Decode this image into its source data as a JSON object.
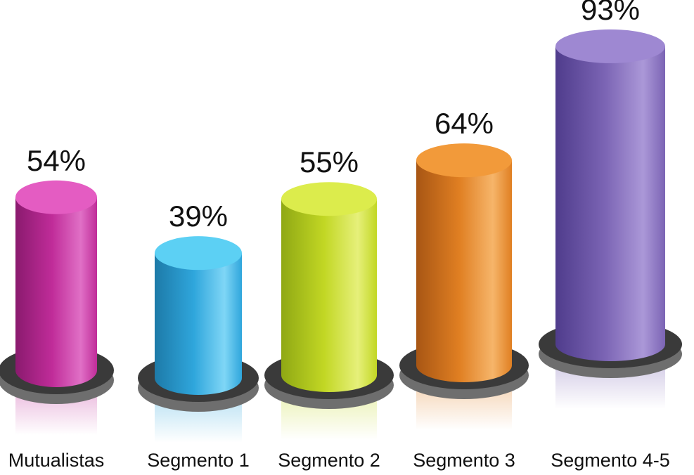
{
  "chart_data": {
    "type": "bar",
    "title": "",
    "xlabel": "",
    "ylabel": "",
    "ylim": [
      0,
      100
    ],
    "grid": false,
    "legend": "none",
    "categories": [
      "Mutualistas",
      "Segmento 1",
      "Segmento 2",
      "Segmento 3",
      "Segmento 4-5"
    ],
    "values": [
      54,
      39,
      55,
      64,
      93
    ],
    "value_labels": [
      "54%",
      "39%",
      "55%",
      "64%",
      "93%"
    ],
    "colors": [
      {
        "dark": "#8a1a6e",
        "mid": "#c02c99",
        "light": "#e070c6",
        "top": "#e45cc2"
      },
      {
        "dark": "#1d7aa8",
        "mid": "#2fa6dc",
        "light": "#7fd6f6",
        "top": "#5cd0f4"
      },
      {
        "dark": "#8fa814",
        "mid": "#c2d724",
        "light": "#e6f07a",
        "top": "#dcec4c"
      },
      {
        "dark": "#a85614",
        "mid": "#e07f22",
        "light": "#f6b56a",
        "top": "#f29a3a"
      },
      {
        "dark": "#4f3c8c",
        "mid": "#7b64b4",
        "light": "#ab98d8",
        "top": "#9e88d2"
      }
    ],
    "base_color": "#3a3a3a"
  }
}
